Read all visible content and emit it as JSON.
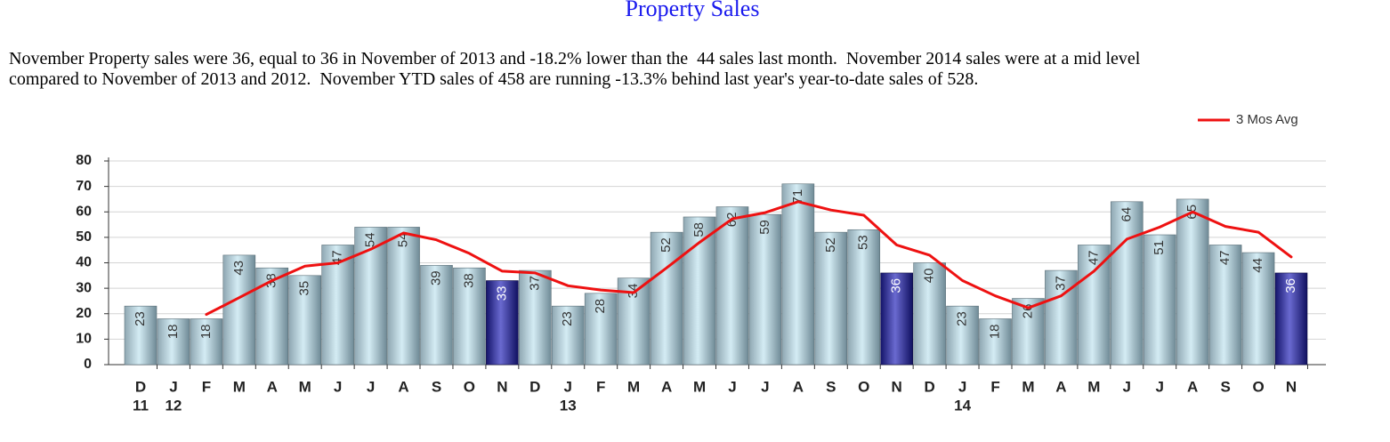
{
  "summary": [
    "November Property sales were 36, equal to 36 in November of 2013 and -18.2% lower than the  44 sales last month.  November 2014 sales were at a mid level",
    "compared to November of 2013 and 2012.  November YTD sales of 458 are running -13.3% behind last year's year-to-date sales of 528."
  ],
  "chart_data": {
    "type": "bar",
    "title": "Property Sales",
    "categories": [
      "D",
      "J",
      "F",
      "M",
      "A",
      "M",
      "J",
      "J",
      "A",
      "S",
      "O",
      "N",
      "D",
      "J",
      "F",
      "M",
      "A",
      "M",
      "J",
      "J",
      "A",
      "S",
      "O",
      "N",
      "D",
      "J",
      "F",
      "M",
      "A",
      "M",
      "J",
      "J",
      "A",
      "S",
      "O",
      "N"
    ],
    "year_labels": [
      "11",
      "12",
      null,
      null,
      null,
      null,
      null,
      null,
      null,
      null,
      null,
      null,
      null,
      "13",
      null,
      null,
      null,
      null,
      null,
      null,
      null,
      null,
      null,
      null,
      null,
      "14",
      null,
      null,
      null,
      null,
      null,
      null,
      null,
      null,
      null,
      null
    ],
    "values": [
      23,
      18,
      18,
      43,
      38,
      35,
      47,
      54,
      54,
      39,
      38,
      33,
      37,
      23,
      28,
      34,
      52,
      58,
      62,
      59,
      71,
      52,
      53,
      36,
      40,
      23,
      18,
      26,
      37,
      47,
      64,
      51,
      65,
      47,
      44,
      36
    ],
    "bar_colors": [
      "light",
      "light",
      "light",
      "light",
      "light",
      "light",
      "light",
      "light",
      "light",
      "light",
      "light",
      "dark",
      "light",
      "light",
      "light",
      "light",
      "light",
      "light",
      "light",
      "light",
      "light",
      "light",
      "light",
      "dark",
      "light",
      "light",
      "light",
      "light",
      "light",
      "light",
      "light",
      "light",
      "light",
      "light",
      "light",
      "dark"
    ],
    "line": {
      "name": "3 Mos Avg",
      "color": "#ee1111",
      "values": [
        null,
        null,
        19.7,
        26.3,
        33,
        38.7,
        40,
        45.3,
        51.7,
        49,
        43.7,
        36.7,
        36,
        31,
        29.3,
        28.3,
        38,
        48,
        57.3,
        59.7,
        64,
        60.7,
        58.7,
        47,
        43,
        33,
        27,
        22.3,
        27,
        36.7,
        49.3,
        54,
        60,
        54.3,
        52,
        42.3
      ]
    },
    "ylim": [
      0,
      80
    ],
    "yticks": [
      0,
      10,
      20,
      30,
      40,
      50,
      60,
      70,
      80
    ],
    "grid": true,
    "legend": "top-right"
  }
}
